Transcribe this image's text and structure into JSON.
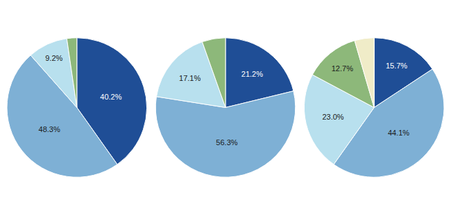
{
  "chart_data": [
    {
      "type": "pie",
      "values": [
        40.2,
        48.3,
        9.2,
        2.3
      ],
      "value_labels": [
        "40.2%",
        "48.3%",
        "9.2%",
        null
      ],
      "colors": [
        "#1F4E96",
        "#7EB0D5",
        "#B8E0EE",
        "#8DB87A"
      ],
      "data_labels": true
    },
    {
      "type": "pie",
      "values": [
        21.2,
        56.3,
        17.1,
        5.4
      ],
      "value_labels": [
        "21.2%",
        "56.3%",
        "17.1%",
        null
      ],
      "colors": [
        "#1F4E96",
        "#7EB0D5",
        "#B8E0EE",
        "#8DB87A"
      ],
      "data_labels": true
    },
    {
      "type": "pie",
      "values": [
        15.7,
        44.1,
        23.0,
        12.7,
        4.5
      ],
      "value_labels": [
        "15.7%",
        "44.1%",
        "23.0%",
        "12.7%",
        null
      ],
      "colors": [
        "#1F4E96",
        "#7EB0D5",
        "#B8E0EE",
        "#8DB87A",
        "#F0ECC8"
      ],
      "data_labels": true
    }
  ]
}
